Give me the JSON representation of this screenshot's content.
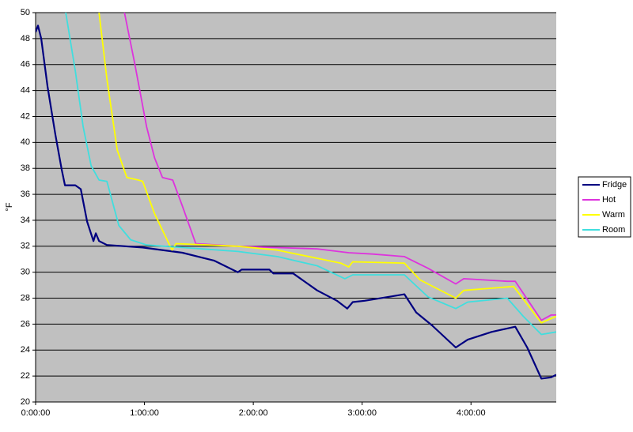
{
  "chart_data": {
    "type": "line",
    "y_label": "°F",
    "xlim": [
      0,
      287
    ],
    "ylim": [
      20,
      50
    ],
    "xticks": [
      {
        "value": 0,
        "label": "0:00:00"
      },
      {
        "value": 60,
        "label": "1:00:00"
      },
      {
        "value": 120,
        "label": "2:00:00"
      },
      {
        "value": 180,
        "label": "3:00:00"
      },
      {
        "value": 240,
        "label": "4:00:00"
      }
    ],
    "yticks": [
      20,
      22,
      24,
      26,
      28,
      30,
      32,
      34,
      36,
      38,
      40,
      42,
      44,
      46,
      48,
      50
    ],
    "grid": true,
    "plot_background": "#c0c0c0",
    "legend": "right",
    "series": [
      {
        "name": "Fridge",
        "color": "#000080",
        "x": [
          0,
          1.3,
          3.1,
          6.6,
          10.9,
          14.4,
          16.2,
          21.9,
          24.9,
          28.4,
          31.9,
          33.2,
          35,
          39.3,
          59,
          80.9,
          98.3,
          111.5,
          113.6,
          128.9,
          131.1,
          142,
          155.2,
          166.1,
          171.8,
          174.8,
          181.4,
          194.5,
          203.3,
          209.8,
          218.5,
          231.6,
          238.2,
          251.3,
          264.4,
          271,
          278.8,
          284.1,
          287
        ],
        "values": [
          48.5,
          49,
          48,
          44.3,
          40.6,
          37.9,
          36.7,
          36.7,
          36.4,
          33.9,
          32.4,
          33,
          32.4,
          32.1,
          31.9,
          31.5,
          30.9,
          30,
          30.2,
          30.2,
          29.9,
          29.9,
          28.6,
          27.8,
          27.2,
          27.7,
          27.8,
          28.1,
          28.3,
          26.9,
          25.9,
          24.2,
          24.8,
          25.4,
          25.8,
          24.2,
          21.8,
          21.9,
          22.1
        ]
      },
      {
        "name": "Hot",
        "color": "#dd33dd",
        "x": [
          49,
          54.6,
          61.2,
          65.6,
          69.9,
          75.6,
          80.9,
          88.3,
          111.5,
          155.2,
          172.6,
          185.8,
          203.3,
          216.3,
          231.6,
          236,
          260,
          264.4,
          278.8,
          284.1,
          287
        ],
        "values": [
          50,
          46.1,
          41.2,
          38.8,
          37.3,
          37.1,
          35.1,
          32.2,
          32,
          31.8,
          31.5,
          31.4,
          31.2,
          30.3,
          29.1,
          29.5,
          29.3,
          29.3,
          26.3,
          26.7,
          26.7
        ]
      },
      {
        "name": "Warm",
        "color": "#ffff00",
        "x": [
          35,
          39.3,
          45,
          50.3,
          56.8,
          59,
          65.6,
          75.2,
          77.4,
          111.5,
          133.3,
          168.3,
          172.6,
          174.8,
          203.3,
          212,
          231.6,
          236,
          263.5,
          278.8,
          287
        ],
        "values": [
          50,
          44.9,
          39.4,
          37.3,
          37.1,
          37,
          34.5,
          31.7,
          32.2,
          32,
          31.7,
          30.7,
          30.4,
          30.8,
          30.7,
          29.4,
          28,
          28.6,
          28.9,
          26.1,
          26.6
        ]
      },
      {
        "name": "Room",
        "color": "#40dede",
        "x": [
          16.6,
          21.9,
          26.2,
          30.6,
          35,
          39.3,
          45.9,
          52.4,
          61.2,
          111.5,
          133.3,
          155.2,
          170.5,
          174.8,
          203.3,
          216.3,
          231.6,
          238.2,
          260,
          268.8,
          278.8,
          287
        ],
        "values": [
          50,
          45.5,
          41.2,
          38.2,
          37.1,
          37,
          33.6,
          32.5,
          32.1,
          31.6,
          31.2,
          30.5,
          29.5,
          29.8,
          29.8,
          28.1,
          27.2,
          27.7,
          28,
          26.6,
          25.2,
          25.4
        ]
      }
    ]
  }
}
